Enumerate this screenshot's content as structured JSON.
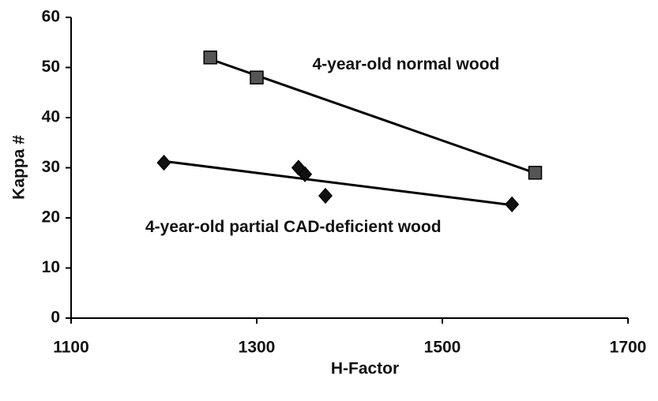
{
  "chart_data": {
    "type": "scatter",
    "x_label": "H-Factor",
    "y_label": "Kappa #",
    "xlim": [
      1100,
      1700
    ],
    "xticks": [
      1100,
      1300,
      1500,
      1700
    ],
    "ylim": [
      0,
      60
    ],
    "yticks": [
      0,
      10,
      20,
      30,
      40,
      50,
      60
    ],
    "trendline": true,
    "series": [
      {
        "marker": "square",
        "color": "#555555",
        "x": [
          1250,
          1300,
          1600
        ],
        "values": [
          52,
          48,
          29
        ]
      },
      {
        "marker": "diamond",
        "color": "#111111",
        "x": [
          1200,
          1345,
          1352,
          1374,
          1575
        ],
        "values": [
          31,
          30,
          28.7,
          24.4,
          22.7
        ]
      }
    ],
    "annotations": [
      {
        "text": "4-year-old normal wood",
        "x": 1360,
        "y": 50.5
      },
      {
        "text": "4-year-old partial CAD-deficient wood",
        "x": 1180,
        "y": 18
      }
    ]
  }
}
